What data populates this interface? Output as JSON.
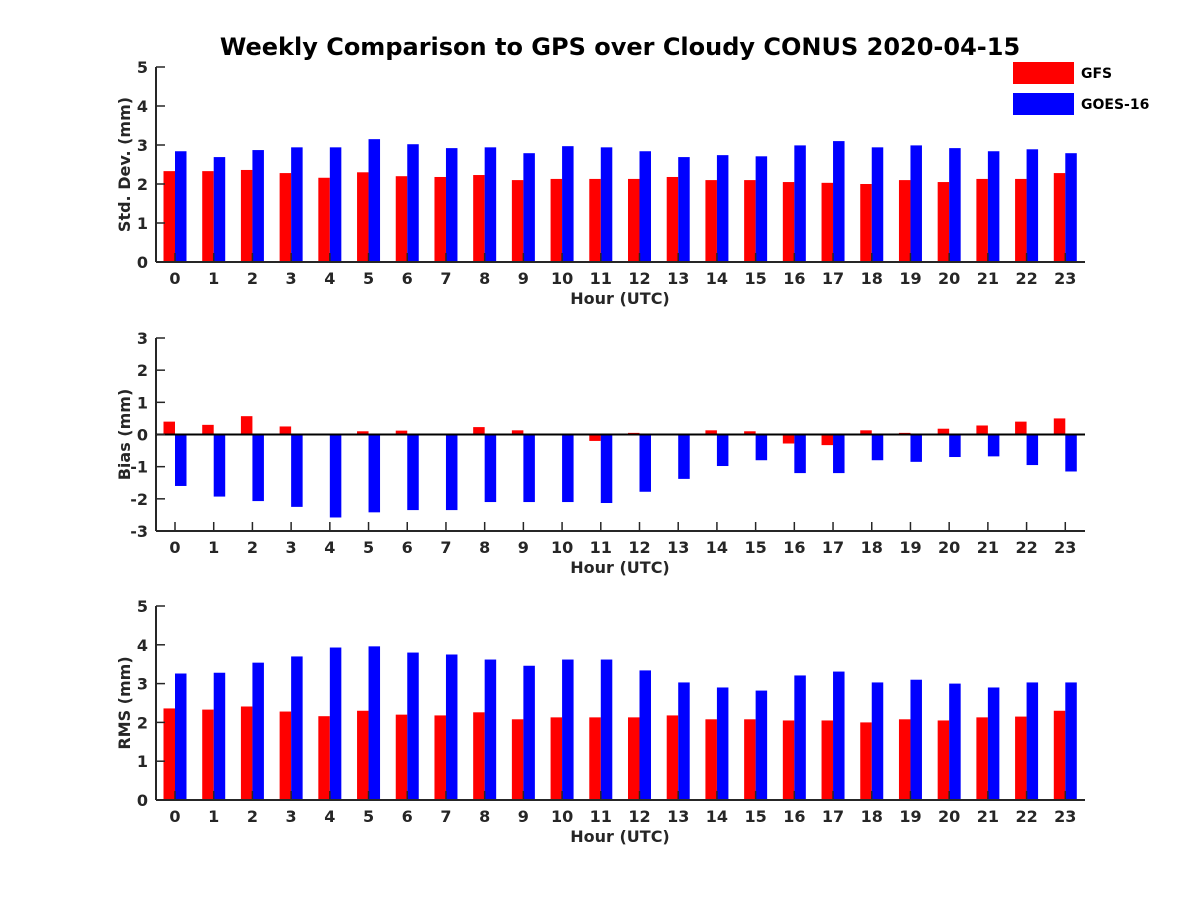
{
  "title": "Weekly Comparison to GPS over Cloudy CONUS 2020-04-15",
  "colors": {
    "GFS": "#ff0000",
    "GOES-16": "#0000ff",
    "axis": "#262626"
  },
  "legend": {
    "placement": "top-right",
    "items": [
      "GFS",
      "GOES-16"
    ]
  },
  "chart_data": [
    {
      "type": "bar",
      "xlabel": "Hour (UTC)",
      "ylabel": "Std. Dev. (mm)",
      "ylim": [
        0,
        5
      ],
      "yticks": [
        0,
        1,
        2,
        3,
        4,
        5
      ],
      "grid": false,
      "categories": [
        "0",
        "1",
        "2",
        "3",
        "4",
        "5",
        "6",
        "7",
        "8",
        "9",
        "10",
        "11",
        "12",
        "13",
        "14",
        "15",
        "16",
        "17",
        "18",
        "19",
        "20",
        "21",
        "22",
        "23"
      ],
      "series": [
        {
          "name": "GFS",
          "values": [
            2.33,
            2.33,
            2.36,
            2.28,
            2.16,
            2.3,
            2.2,
            2.18,
            2.23,
            2.1,
            2.13,
            2.13,
            2.13,
            2.18,
            2.1,
            2.1,
            2.05,
            2.03,
            2.0,
            2.1,
            2.05,
            2.13,
            2.13,
            2.28
          ]
        },
        {
          "name": "GOES-16",
          "values": [
            2.84,
            2.69,
            2.87,
            2.94,
            2.94,
            3.15,
            3.02,
            2.92,
            2.94,
            2.79,
            2.97,
            2.94,
            2.84,
            2.69,
            2.74,
            2.71,
            2.99,
            3.1,
            2.94,
            2.99,
            2.92,
            2.84,
            2.89,
            2.79
          ]
        }
      ]
    },
    {
      "type": "bar",
      "xlabel": "Hour (UTC)",
      "ylabel": "Bias (mm)",
      "ylim": [
        -3,
        3
      ],
      "yticks": [
        -3,
        -2,
        -1,
        0,
        1,
        2,
        3
      ],
      "grid": false,
      "categories": [
        "0",
        "1",
        "2",
        "3",
        "4",
        "5",
        "6",
        "7",
        "8",
        "9",
        "10",
        "11",
        "12",
        "13",
        "14",
        "15",
        "16",
        "17",
        "18",
        "19",
        "20",
        "21",
        "22",
        "23"
      ],
      "series": [
        {
          "name": "GFS",
          "values": [
            0.4,
            0.3,
            0.57,
            0.25,
            0.0,
            0.1,
            0.12,
            0.03,
            0.23,
            0.13,
            0.0,
            -0.2,
            0.05,
            0.03,
            0.13,
            0.1,
            -0.28,
            -0.33,
            0.13,
            0.05,
            0.18,
            0.28,
            0.4,
            0.5
          ]
        },
        {
          "name": "GOES-16",
          "values": [
            -1.6,
            -1.93,
            -2.07,
            -2.25,
            -2.58,
            -2.42,
            -2.35,
            -2.35,
            -2.1,
            -2.1,
            -2.1,
            -2.13,
            -1.78,
            -1.38,
            -0.98,
            -0.8,
            -1.2,
            -1.2,
            -0.8,
            -0.85,
            -0.7,
            -0.68,
            -0.95,
            -1.15
          ]
        }
      ]
    },
    {
      "type": "bar",
      "xlabel": "Hour (UTC)",
      "ylabel": "RMS (mm)",
      "ylim": [
        0,
        5
      ],
      "yticks": [
        0,
        1,
        2,
        3,
        4,
        5
      ],
      "grid": false,
      "categories": [
        "0",
        "1",
        "2",
        "3",
        "4",
        "5",
        "6",
        "7",
        "8",
        "9",
        "10",
        "11",
        "12",
        "13",
        "14",
        "15",
        "16",
        "17",
        "18",
        "19",
        "20",
        "21",
        "22",
        "23"
      ],
      "series": [
        {
          "name": "GFS",
          "values": [
            2.36,
            2.33,
            2.41,
            2.28,
            2.16,
            2.3,
            2.2,
            2.18,
            2.26,
            2.08,
            2.13,
            2.13,
            2.13,
            2.18,
            2.08,
            2.08,
            2.05,
            2.05,
            2.0,
            2.08,
            2.05,
            2.13,
            2.15,
            2.3
          ]
        },
        {
          "name": "GOES-16",
          "values": [
            3.26,
            3.28,
            3.54,
            3.7,
            3.93,
            3.96,
            3.8,
            3.75,
            3.62,
            3.46,
            3.62,
            3.62,
            3.34,
            3.03,
            2.9,
            2.82,
            3.21,
            3.31,
            3.03,
            3.1,
            3.0,
            2.9,
            3.03,
            3.03
          ]
        }
      ]
    }
  ]
}
